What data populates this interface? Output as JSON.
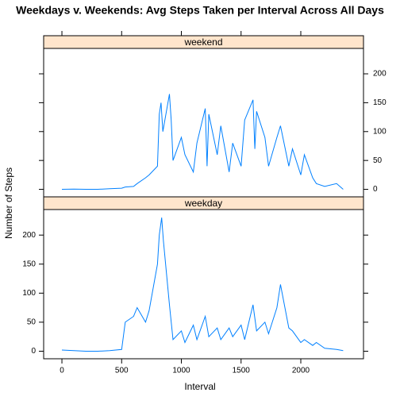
{
  "chart_data": {
    "type": "line",
    "title": "Weekdays v. Weekends: Avg Steps Taken per Interval Across All Days",
    "xlabel": "Interval",
    "ylabel": "Number of Steps",
    "xlim": [
      -153,
      2525
    ],
    "xticks": [
      0,
      500,
      1000,
      1500,
      2000
    ],
    "ylim": [
      -13,
      244
    ],
    "yticks": [
      0,
      50,
      100,
      150,
      200
    ],
    "strip_color": "#ffe5cc",
    "series": [
      {
        "name": "weekend",
        "color": "#0080ff",
        "x": [
          0,
          100,
          200,
          300,
          400,
          500,
          530,
          600,
          630,
          700,
          730,
          800,
          815,
          830,
          845,
          900,
          915,
          930,
          1000,
          1030,
          1100,
          1130,
          1200,
          1215,
          1230,
          1300,
          1330,
          1400,
          1430,
          1500,
          1530,
          1600,
          1615,
          1630,
          1700,
          1730,
          1800,
          1830,
          1900,
          1930,
          2000,
          2030,
          2100,
          2130,
          2200,
          2300,
          2355
        ],
        "values": [
          0,
          0.5,
          0,
          0,
          1,
          2,
          4,
          5,
          10,
          20,
          25,
          40,
          130,
          150,
          100,
          165,
          120,
          50,
          90,
          60,
          30,
          80,
          140,
          40,
          130,
          60,
          110,
          30,
          80,
          40,
          120,
          155,
          70,
          135,
          90,
          40,
          90,
          110,
          40,
          70,
          25,
          60,
          20,
          10,
          5,
          10,
          0
        ]
      },
      {
        "name": "weekday",
        "color": "#0080ff",
        "x": [
          0,
          100,
          200,
          300,
          400,
          500,
          530,
          600,
          630,
          700,
          730,
          800,
          815,
          835,
          850,
          900,
          930,
          1000,
          1030,
          1100,
          1130,
          1200,
          1230,
          1300,
          1330,
          1400,
          1430,
          1500,
          1530,
          1600,
          1630,
          1700,
          1730,
          1800,
          1830,
          1900,
          1930,
          2000,
          2030,
          2100,
          2130,
          2200,
          2300,
          2355
        ],
        "values": [
          2,
          1,
          0,
          0,
          1,
          3,
          50,
          60,
          75,
          50,
          70,
          150,
          200,
          230,
          190,
          80,
          20,
          35,
          15,
          45,
          20,
          60,
          25,
          40,
          20,
          40,
          25,
          45,
          20,
          80,
          35,
          50,
          30,
          75,
          115,
          40,
          35,
          15,
          20,
          10,
          15,
          5,
          3,
          1
        ]
      }
    ]
  }
}
